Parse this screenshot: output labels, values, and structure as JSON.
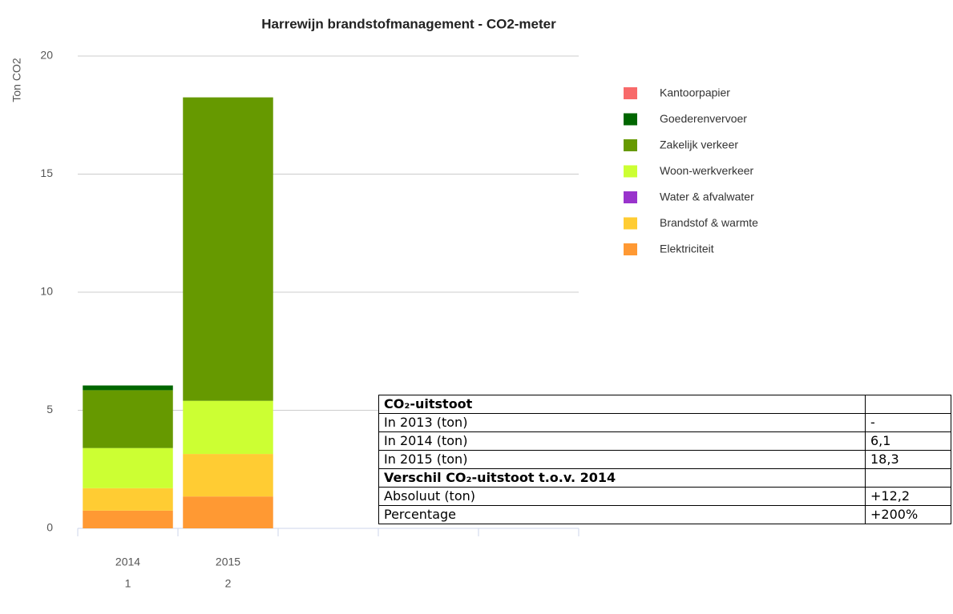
{
  "chart_data": {
    "type": "stacked_bar",
    "title": "Harrewijn brandstofmanagement - CO2-meter",
    "y_label": "Ton CO2",
    "categories": [
      "2014",
      "2015"
    ],
    "category_numbers": [
      "1",
      "2"
    ],
    "ylim": [
      0,
      20
    ],
    "yticks": [
      0,
      5,
      10,
      15,
      20
    ],
    "grid": true,
    "legend": "right",
    "series": [
      {
        "name": "Elektriciteit",
        "color": "#ff9933",
        "values": [
          0.75,
          1.35
        ]
      },
      {
        "name": "Brandstof & warmte",
        "color": "#ffcc33",
        "values": [
          0.95,
          1.8
        ]
      },
      {
        "name": "Water & afvalwater",
        "color": "#9933cc",
        "values": [
          0,
          0
        ]
      },
      {
        "name": "Woon-werkverkeer",
        "color": "#ccff33",
        "values": [
          1.7,
          2.25
        ]
      },
      {
        "name": "Zakelijk verkeer",
        "color": "#669900",
        "values": [
          2.45,
          12.85
        ]
      },
      {
        "name": "Goederenvervoer",
        "color": "#006600",
        "values": [
          0.2,
          0
        ]
      },
      {
        "name": "Kantoorpapier",
        "color": "#f86a6a",
        "values": [
          0,
          0
        ]
      }
    ]
  },
  "table": {
    "rows": [
      [
        "CO₂-uitstoot",
        ""
      ],
      [
        "In 2013 (ton)",
        "-"
      ],
      [
        "In 2014 (ton)",
        "6,1"
      ],
      [
        "In 2015 (ton)",
        "18,3"
      ],
      [
        "Verschil CO₂-uitstoot t.o.v. 2014",
        ""
      ],
      [
        "Absoluut (ton)",
        "+12,2"
      ],
      [
        "Percentage",
        "+200%"
      ]
    ],
    "bold_rows": [
      0,
      4
    ]
  }
}
